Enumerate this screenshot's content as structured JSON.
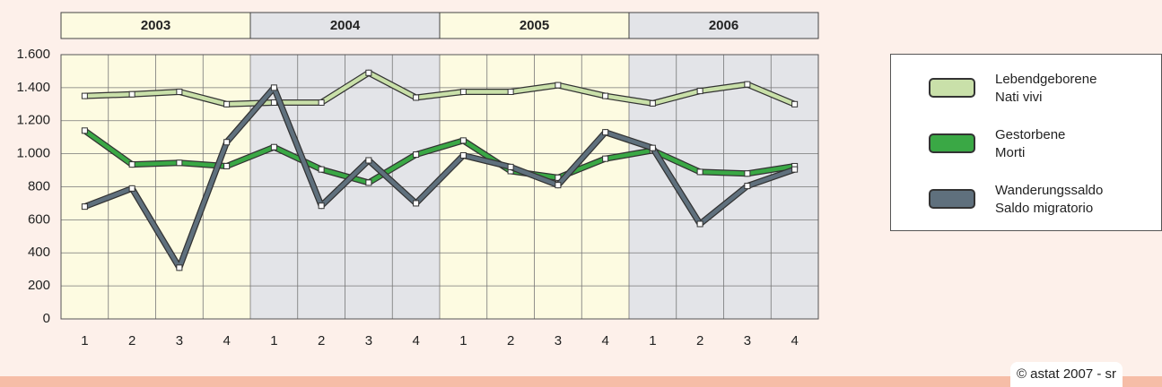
{
  "chart_data": {
    "type": "line",
    "year_groups": [
      "2003",
      "2004",
      "2005",
      "2006"
    ],
    "categories": [
      "1",
      "2",
      "3",
      "4",
      "1",
      "2",
      "3",
      "4",
      "1",
      "2",
      "3",
      "4",
      "1",
      "2",
      "3",
      "4"
    ],
    "series": [
      {
        "name": "Lebendgeborene\nNati vivi",
        "color": "#c9e0a9",
        "values": [
          1350,
          1360,
          1375,
          1300,
          1310,
          1310,
          1490,
          1340,
          1375,
          1375,
          1415,
          1350,
          1305,
          1380,
          1420,
          1300
        ]
      },
      {
        "name": "Gestorbene\nMorti",
        "color": "#3aa845",
        "values": [
          1140,
          935,
          945,
          925,
          1040,
          905,
          825,
          995,
          1080,
          895,
          855,
          970,
          1020,
          890,
          880,
          925
        ]
      },
      {
        "name": "Wanderungssaldo\nSaldo migratorio",
        "color": "#5f707d",
        "values": [
          680,
          790,
          310,
          1070,
          1400,
          685,
          960,
          700,
          990,
          920,
          810,
          1130,
          1035,
          575,
          805,
          905
        ]
      }
    ],
    "ylim": [
      0,
      1600
    ],
    "yticks": [
      0,
      200,
      400,
      600,
      800,
      {
        "value": 1000,
        "label": "1.000"
      },
      {
        "value": 1200,
        "label": "1.200"
      },
      {
        "value": 1400,
        "label": "1.400"
      },
      {
        "value": 1600,
        "label": "1.600"
      }
    ],
    "grid": true,
    "copyright": "© astat 2007 - sr"
  }
}
